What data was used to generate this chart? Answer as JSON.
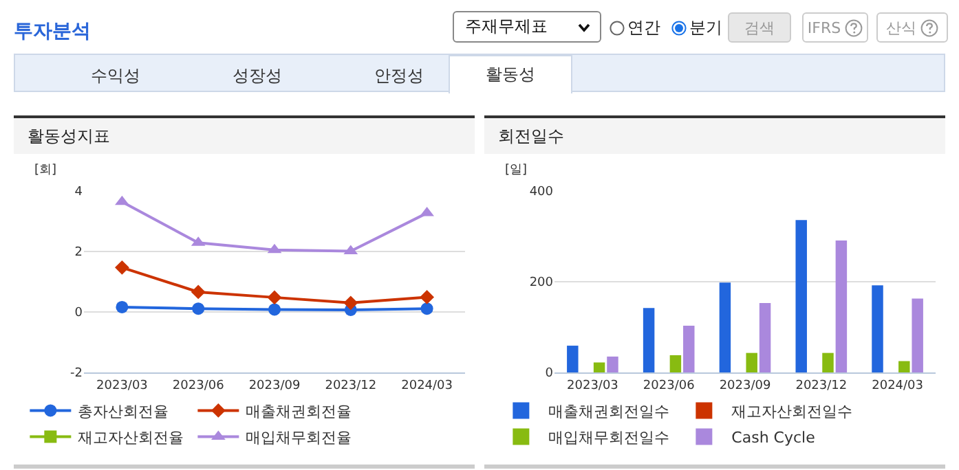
{
  "chart_data": [
    {
      "type": "other",
      "title": "투자분석",
      "annotations": [
        "주재무제표",
        "연간",
        "분기",
        "검색",
        "IFRS",
        "산식",
        "수익성",
        "성장성",
        "안정성",
        "활동성"
      ]
    },
    {
      "type": "line",
      "title": "활동성지표",
      "ylabel": "[회]",
      "categories": [
        "2023/03",
        "2023/06",
        "2023/09",
        "2023/12",
        "2024/03"
      ],
      "ylim": [
        -2,
        4
      ],
      "yticks": [
        -2,
        0,
        2,
        4
      ],
      "grid": "y",
      "legend": "bottom",
      "line_style": "solid",
      "series": [
        {
          "name": "총자산회전율",
          "color": "#2266dd",
          "marker": "circle",
          "values": [
            0.16,
            0.11,
            0.08,
            0.07,
            0.11
          ]
        },
        {
          "name": "매출채권회전율",
          "color": "#cc3300",
          "marker": "diamond",
          "values": [
            1.47,
            0.66,
            0.48,
            0.3,
            0.49
          ]
        },
        {
          "name": "재고자산회전율",
          "color": "#88bb11",
          "marker": "square",
          "values": [
            null,
            null,
            null,
            null,
            null
          ]
        },
        {
          "name": "매입채무회전율",
          "color": "#aa88dd",
          "marker": "triangle",
          "values": [
            3.64,
            2.29,
            2.05,
            2.01,
            3.27
          ]
        }
      ]
    },
    {
      "type": "bar",
      "title": "회전일수",
      "ylabel": "[일]",
      "categories": [
        "2023/03",
        "2023/06",
        "2023/09",
        "2023/12",
        "2024/03"
      ],
      "ylim": [
        0,
        400
      ],
      "yticks": [
        0,
        200,
        400
      ],
      "grid": "y",
      "legend": "bottom",
      "series": [
        {
          "name": "매출채권회전일수",
          "color": "#2266dd",
          "values": [
            59,
            142,
            198,
            336,
            192
          ]
        },
        {
          "name": "재고자산회전일수",
          "color": "#cc3300",
          "values": [
            null,
            null,
            null,
            null,
            null
          ]
        },
        {
          "name": "매입채무회전일수",
          "color": "#88bb11",
          "values": [
            22,
            38,
            43,
            43,
            25
          ]
        },
        {
          "name": "Cash Cycle",
          "color": "#aa88dd",
          "values": [
            35,
            103,
            153,
            291,
            163
          ]
        }
      ]
    }
  ]
}
